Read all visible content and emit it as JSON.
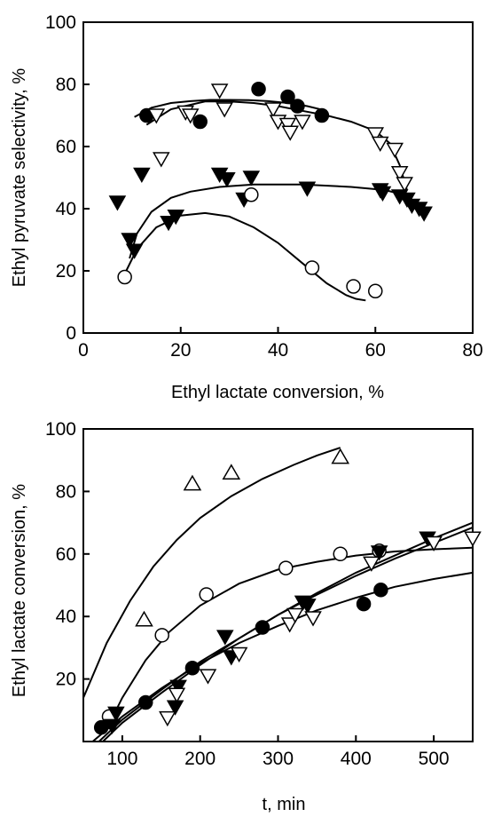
{
  "chart_data": [
    {
      "type": "scatter",
      "title": "",
      "xlabel": "Ethyl lactate conversion, %",
      "ylabel": "Ethyl pyruvate selectivity, %",
      "xlim": [
        0,
        80
      ],
      "ylim": [
        0,
        100
      ],
      "xticks": [
        0,
        20,
        40,
        60,
        80
      ],
      "yticks": [
        0,
        20,
        40,
        60,
        80,
        100
      ],
      "grid": false,
      "legend": "none",
      "series": [
        {
          "marker": "filled-circle",
          "x": [
            13,
            24,
            36,
            42,
            44,
            49
          ],
          "y": [
            70,
            68,
            78.5,
            76,
            73,
            70
          ]
        },
        {
          "marker": "open-triangle-down",
          "x": [
            15,
            16,
            21,
            22,
            28,
            29,
            39,
            40,
            42,
            42.5,
            45,
            60,
            61,
            64,
            65,
            66
          ],
          "y": [
            70,
            56,
            71,
            70,
            78,
            72,
            72,
            68,
            67,
            64.5,
            68,
            64,
            61,
            59,
            51.5,
            48
          ]
        },
        {
          "marker": "filled-triangle-down",
          "x": [
            7,
            9.5,
            10.5,
            12,
            17.5,
            19,
            28,
            29.5,
            33,
            34.5,
            46,
            61,
            61.5,
            65,
            66.5,
            67.5,
            69,
            70
          ],
          "y": [
            42,
            30,
            26.5,
            51,
            35.5,
            37.5,
            51,
            49.5,
            43,
            50,
            46.5,
            46,
            45,
            44,
            43,
            41,
            40,
            38.5
          ]
        },
        {
          "marker": "open-circle",
          "x": [
            8.5,
            34.5,
            47,
            55.5,
            60
          ],
          "y": [
            18,
            44.5,
            21,
            15,
            13.5
          ]
        }
      ],
      "fits": [
        {
          "of": "filled-circle",
          "x": [
            10.5,
            14,
            18,
            22,
            26,
            30,
            34,
            38,
            42,
            46,
            50
          ],
          "y": [
            69.5,
            72.5,
            74,
            74.6,
            75,
            75,
            74.9,
            74.6,
            74,
            73,
            71.5
          ]
        },
        {
          "of": "open-triangle-down",
          "x": [
            13,
            18,
            25,
            30,
            35,
            40,
            45,
            50,
            55,
            60,
            63,
            65,
            66.5
          ],
          "y": [
            67,
            72,
            74.5,
            74.5,
            74,
            73,
            71.5,
            70,
            68,
            65,
            61,
            54,
            46
          ]
        },
        {
          "of": "filled-triangle-down",
          "x": [
            9.5,
            11,
            14,
            18,
            22,
            28,
            35,
            45,
            55,
            62,
            67
          ],
          "y": [
            24,
            32,
            39,
            43.5,
            45.5,
            47,
            47.8,
            47.8,
            47,
            46,
            44
          ]
        },
        {
          "of": "open-circle",
          "x": [
            8.5,
            11,
            15,
            20,
            25,
            30,
            35,
            40,
            45,
            50,
            54,
            56,
            58
          ],
          "y": [
            19,
            27,
            34,
            37.8,
            38.6,
            37.5,
            34,
            29,
            22.5,
            16,
            12.2,
            11,
            10.5
          ]
        }
      ]
    },
    {
      "type": "scatter",
      "title": "",
      "xlabel": "t, min",
      "ylabel": "Ethyl lactate conversion, %",
      "xlim": [
        50,
        550
      ],
      "ylim": [
        0,
        100
      ],
      "xticks": [
        100,
        200,
        300,
        400,
        500
      ],
      "yticks": [
        20,
        40,
        60,
        80,
        100
      ],
      "grid": false,
      "legend": "none",
      "series": [
        {
          "marker": "open-triangle-up",
          "x": [
            128,
            190,
            240,
            380
          ],
          "y": [
            39,
            82.5,
            86,
            91
          ]
        },
        {
          "marker": "open-circle",
          "x": [
            83,
            151,
            208,
            310,
            380,
            430
          ],
          "y": [
            8,
            34,
            47,
            55.5,
            60,
            61
          ]
        },
        {
          "marker": "filled-circle",
          "x": [
            73,
            130,
            190,
            280,
            410,
            432
          ],
          "y": [
            4.5,
            12.5,
            23.5,
            36.5,
            44,
            48.5
          ]
        },
        {
          "marker": "filled-triangle-down",
          "x": [
            87,
            92,
            168,
            172,
            232,
            240,
            332,
            338,
            430,
            492
          ],
          "y": [
            5,
            9,
            11,
            17.5,
            33.5,
            27,
            44.5,
            43.5,
            60.5,
            65
          ]
        },
        {
          "marker": "open-triangle-down",
          "x": [
            158,
            170,
            210,
            250,
            315,
            322,
            345,
            420,
            500,
            550
          ],
          "y": [
            7.5,
            15,
            21,
            28,
            37.5,
            40.5,
            39.5,
            57,
            63.5,
            65
          ]
        }
      ],
      "fits": [
        {
          "of": "open-triangle-up",
          "x": [
            50,
            80,
            110,
            140,
            170,
            200,
            240,
            280,
            320,
            350,
            380
          ],
          "y": [
            14,
            31.5,
            45,
            56,
            64.5,
            71.5,
            78.5,
            84,
            88.5,
            91.5,
            94
          ]
        },
        {
          "of": "open-circle",
          "x": [
            78,
            100,
            130,
            160,
            200,
            250,
            300,
            350,
            400,
            450,
            500,
            550
          ],
          "y": [
            3,
            14,
            26,
            35,
            43.5,
            50.5,
            55,
            57.5,
            59.5,
            60.8,
            61.5,
            62
          ]
        },
        {
          "of": "filled-circle",
          "x": [
            62,
            100,
            150,
            200,
            250,
            300,
            350,
            400,
            450,
            500,
            550
          ],
          "y": [
            0,
            8,
            17,
            25,
            31.5,
            37,
            42,
            46,
            49.5,
            52,
            54
          ]
        },
        {
          "of": "filled-triangle-down",
          "x": [
            70,
            100,
            150,
            200,
            250,
            300,
            350,
            400,
            450,
            500,
            550
          ],
          "y": [
            0,
            7,
            16.5,
            25.5,
            33,
            40.5,
            47,
            53,
            58.5,
            63.5,
            68.5
          ]
        },
        {
          "of": "open-triangle-down",
          "x": [
            75,
            100,
            150,
            200,
            250,
            300,
            350,
            400,
            450,
            500,
            550
          ],
          "y": [
            0,
            6,
            15.5,
            24.5,
            33,
            40.5,
            47.5,
            54,
            59.5,
            65,
            70
          ]
        }
      ]
    }
  ]
}
